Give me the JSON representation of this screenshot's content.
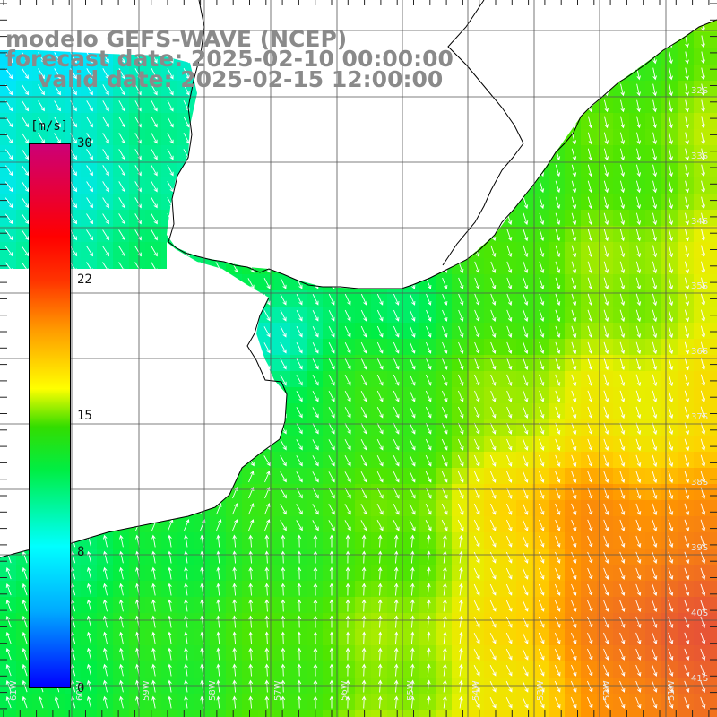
{
  "header": {
    "model": "modelo GEFS-WAVE (NCEP)",
    "forecast": "forecast date: 2025-02-10 00:00:00",
    "valid": "valid date: 2025-02-15 12:00:00"
  },
  "colorbar": {
    "unit": "[m/s]",
    "ticks": [
      30,
      22,
      15,
      8,
      0
    ],
    "max": 30,
    "colors": [
      "#0000ff",
      "#00aaff",
      "#00ffff",
      "#00ee44",
      "#33dd00",
      "#ffff00",
      "#ff9900",
      "#ff3300",
      "#ff0000",
      "#cc0077"
    ]
  },
  "map": {
    "lat_labels": [
      "32S",
      "33S",
      "34S",
      "35S",
      "36S",
      "37S",
      "38S",
      "39S",
      "40S",
      "41S"
    ],
    "lon_labels": [
      "61W",
      "60W",
      "59W",
      "58W",
      "57W",
      "56W",
      "55W",
      "54W",
      "53W",
      "52W",
      "51W"
    ],
    "land_color": "#ffffff",
    "coast_color": "#000000",
    "grid_color": "#666666",
    "arrow_color": "#ffffff"
  }
}
